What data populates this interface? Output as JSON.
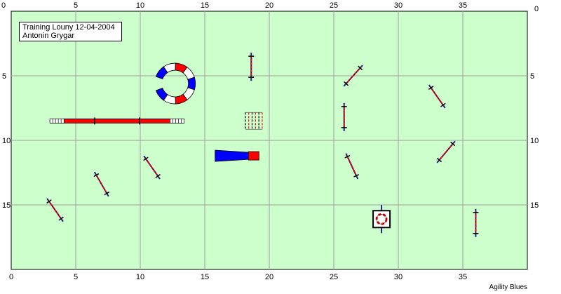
{
  "course": {
    "title": "Training Louny 12-04-2004",
    "judge": "Antonin Grygar",
    "brand": "Agility Blues",
    "x_ticks": [
      "0",
      "5",
      "10",
      "15",
      "20",
      "25",
      "30",
      "35"
    ],
    "y_ticks": [
      "0",
      "5",
      "10",
      "15"
    ],
    "x_range": [
      0,
      40
    ],
    "y_range": [
      0,
      20
    ],
    "colors": {
      "field": "#ccffcc",
      "grid": "#a0a0a0",
      "tunnel": "#0000ff",
      "red": "#ff0000",
      "bar": "#ff0000"
    }
  },
  "obstacles": {
    "hurdles": [
      {
        "x": 18.6,
        "y": 4.3,
        "angle": 0
      },
      {
        "x": 26.5,
        "y": 5.0,
        "angle": 42
      },
      {
        "x": 33.0,
        "y": 6.6,
        "angle": -35
      },
      {
        "x": 25.8,
        "y": 8.2,
        "angle": 0
      },
      {
        "x": 33.7,
        "y": 10.9,
        "angle": 40
      },
      {
        "x": 26.4,
        "y": 12.0,
        "angle": -25
      },
      {
        "x": 10.9,
        "y": 12.1,
        "angle": -35
      },
      {
        "x": 7.0,
        "y": 13.4,
        "angle": -30
      },
      {
        "x": 3.4,
        "y": 15.4,
        "angle": -35
      },
      {
        "x": 36.0,
        "y": 16.4,
        "angle": 0
      }
    ],
    "curved_tunnel": {
      "x": 12.7,
      "y": 5.6
    },
    "dogwalk": {
      "x1": 3.0,
      "x2": 13.4,
      "y": 8.5
    },
    "weave": {
      "x": 18.8,
      "y": 8.5
    },
    "chute": {
      "x1": 15.8,
      "x2": 19.2,
      "y": 11.2
    },
    "tire": {
      "x": 28.7,
      "y": 16.1
    }
  }
}
